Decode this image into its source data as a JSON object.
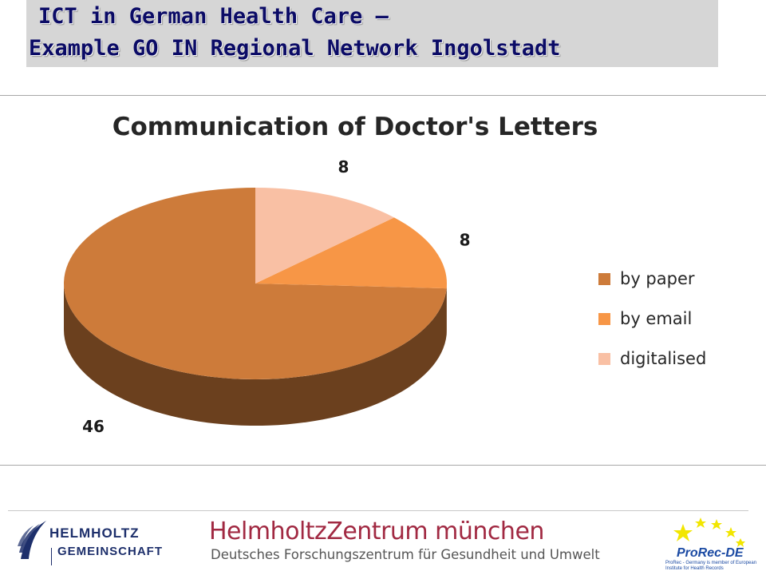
{
  "slide": {
    "title_line1": "ICT in German Health Care –",
    "title_line2": "Example GO IN Regional Network Ingolstadt"
  },
  "chart_data": {
    "type": "pie",
    "title": "Communication of Doctor's Letters",
    "categories": [
      "by paper",
      "by email",
      "digitalised"
    ],
    "values": [
      46,
      8,
      8
    ],
    "colors": [
      "#cd7b3a",
      "#f79646",
      "#f9c0a4"
    ],
    "legend_position": "right"
  },
  "footer": {
    "helmholtz_line1": "HELMHOLTZ",
    "helmholtz_line2": "GEMEINSCHAFT",
    "hmgu_name": "HelmholtzZentrum münchen",
    "hmgu_subtitle": "Deutsches Forschungszentrum für Gesundheit und Umwelt",
    "prorec_name": "ProRec-DE",
    "prorec_note": "ProRec - Germany is member of European Institute for Health Records",
    "colors": {
      "helmholtz": "#1d2f6b",
      "hmgu": "#a12942",
      "prorec": "#1b4aa3",
      "stars": "#f2e600"
    }
  }
}
